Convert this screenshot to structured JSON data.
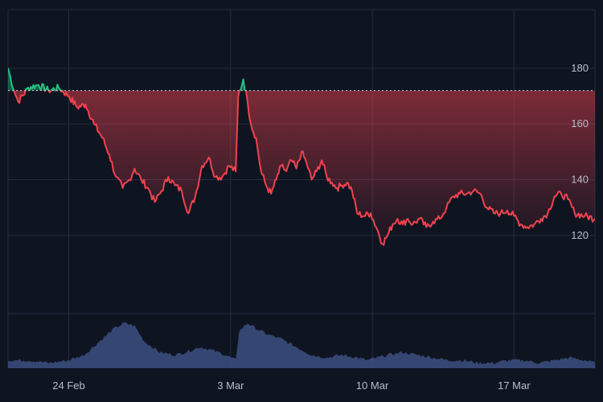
{
  "chart_data": {
    "type": "area",
    "baseline": 172,
    "colors": {
      "above": "#26c281",
      "below": "#f0434f",
      "background": "#0f1421",
      "grid": "#262d3d",
      "volume": "#3d4f80",
      "axis_text": "#b8bfcc"
    },
    "y_axis": {
      "ticks": [
        120,
        140,
        160,
        180
      ],
      "range": [
        92,
        201
      ],
      "position": "right"
    },
    "x_axis": {
      "range": [
        "2024-02-21",
        "2024-03-21"
      ],
      "ticks": [
        {
          "date": "2024-02-24",
          "label": "24 Feb"
        },
        {
          "date": "2024-03-03",
          "label": "3 Mar"
        },
        {
          "date": "2024-03-10",
          "label": "10 Mar"
        },
        {
          "date": "2024-03-17",
          "label": "17 Mar"
        }
      ]
    },
    "grid": true,
    "legend": "none",
    "series": [
      {
        "values": [
          [
            "2024-02-21 00:00",
            180
          ],
          [
            "2024-02-21 07:00",
            172
          ],
          [
            "2024-02-21 12:00",
            168
          ],
          [
            "2024-02-22 00:00",
            173
          ],
          [
            "2024-02-22 12:00",
            174
          ],
          [
            "2024-02-23 00:00",
            172
          ],
          [
            "2024-02-23 12:00",
            173
          ],
          [
            "2024-02-24 00:00",
            170
          ],
          [
            "2024-02-24 10:00",
            166
          ],
          [
            "2024-02-24 20:00",
            167
          ],
          [
            "2024-02-25 06:00",
            160
          ],
          [
            "2024-02-25 16:00",
            155
          ],
          [
            "2024-02-26 00:00",
            149
          ],
          [
            "2024-02-26 08:00",
            141
          ],
          [
            "2024-02-26 16:00",
            137
          ],
          [
            "2024-02-27 00:00",
            140
          ],
          [
            "2024-02-27 06:00",
            144
          ],
          [
            "2024-02-27 14:00",
            140
          ],
          [
            "2024-02-27 22:00",
            137
          ],
          [
            "2024-02-28 06:00",
            132
          ],
          [
            "2024-02-28 14:00",
            136
          ],
          [
            "2024-02-28 22:00",
            141
          ],
          [
            "2024-02-29 06:00",
            138
          ],
          [
            "2024-02-29 14:00",
            136
          ],
          [
            "2024-02-29 22:00",
            128
          ],
          [
            "2024-03-01 06:00",
            134
          ],
          [
            "2024-03-01 14:00",
            145
          ],
          [
            "2024-03-01 22:00",
            148
          ],
          [
            "2024-03-02 06:00",
            141
          ],
          [
            "2024-03-02 14:00",
            141
          ],
          [
            "2024-03-02 22:00",
            145
          ],
          [
            "2024-03-03 06:00",
            143
          ],
          [
            "2024-03-03 09:00",
            170
          ],
          [
            "2024-03-03 15:00",
            176
          ],
          [
            "2024-03-03 20:00",
            168
          ],
          [
            "2024-03-04 00:00",
            160
          ],
          [
            "2024-03-04 06:00",
            155
          ],
          [
            "2024-03-04 12:00",
            143
          ],
          [
            "2024-03-04 18:00",
            138
          ],
          [
            "2024-03-05 00:00",
            135
          ],
          [
            "2024-03-05 06:00",
            140
          ],
          [
            "2024-03-05 12:00",
            145
          ],
          [
            "2024-03-05 18:00",
            143
          ],
          [
            "2024-03-06 00:00",
            147
          ],
          [
            "2024-03-06 06:00",
            144
          ],
          [
            "2024-03-06 12:00",
            150
          ],
          [
            "2024-03-06 18:00",
            146
          ],
          [
            "2024-03-07 00:00",
            140
          ],
          [
            "2024-03-07 06:00",
            143
          ],
          [
            "2024-03-07 12:00",
            147
          ],
          [
            "2024-03-07 18:00",
            141
          ],
          [
            "2024-03-08 00:00",
            139
          ],
          [
            "2024-03-08 06:00",
            137
          ],
          [
            "2024-03-08 12:00",
            138
          ],
          [
            "2024-03-08 18:00",
            139
          ],
          [
            "2024-03-09 00:00",
            136
          ],
          [
            "2024-03-09 06:00",
            128
          ],
          [
            "2024-03-09 14:00",
            127
          ],
          [
            "2024-03-09 22:00",
            128
          ],
          [
            "2024-03-10 06:00",
            122
          ],
          [
            "2024-03-10 12:00",
            117
          ],
          [
            "2024-03-10 18:00",
            120
          ],
          [
            "2024-03-11 00:00",
            124
          ],
          [
            "2024-03-11 06:00",
            126
          ],
          [
            "2024-03-11 12:00",
            124
          ],
          [
            "2024-03-11 18:00",
            126
          ],
          [
            "2024-03-12 00:00",
            124
          ],
          [
            "2024-03-12 08:00",
            126
          ],
          [
            "2024-03-12 16:00",
            123
          ],
          [
            "2024-03-13 00:00",
            125
          ],
          [
            "2024-03-13 08:00",
            126
          ],
          [
            "2024-03-13 16:00",
            130
          ],
          [
            "2024-03-14 00:00",
            134
          ],
          [
            "2024-03-14 08:00",
            135
          ],
          [
            "2024-03-14 16:00",
            135
          ],
          [
            "2024-03-15 00:00",
            136
          ],
          [
            "2024-03-15 08:00",
            135
          ],
          [
            "2024-03-15 16:00",
            130
          ],
          [
            "2024-03-16 00:00",
            128
          ],
          [
            "2024-03-16 08:00",
            128
          ],
          [
            "2024-03-16 16:00",
            129
          ],
          [
            "2024-03-17 00:00",
            127
          ],
          [
            "2024-03-17 08:00",
            124
          ],
          [
            "2024-03-17 16:00",
            123
          ],
          [
            "2024-03-18 00:00",
            124
          ],
          [
            "2024-03-18 08:00",
            126
          ],
          [
            "2024-03-18 16:00",
            128
          ],
          [
            "2024-03-19 00:00",
            134
          ],
          [
            "2024-03-19 08:00",
            135
          ],
          [
            "2024-03-19 16:00",
            133
          ],
          [
            "2024-03-20 00:00",
            128
          ],
          [
            "2024-03-20 12:00",
            127
          ],
          [
            "2024-03-21 00:00",
            126
          ]
        ]
      }
    ],
    "volume": [
      [
        "2024-02-21 00:00",
        3
      ],
      [
        "2024-02-22 00:00",
        3
      ],
      [
        "2024-02-23 00:00",
        2
      ],
      [
        "2024-02-24 00:00",
        3
      ],
      [
        "2024-02-24 18:00",
        5
      ],
      [
        "2024-02-25 12:00",
        10
      ],
      [
        "2024-02-26 06:00",
        15
      ],
      [
        "2024-02-26 18:00",
        17
      ],
      [
        "2024-02-27 06:00",
        16
      ],
      [
        "2024-02-27 18:00",
        10
      ],
      [
        "2024-02-28 12:00",
        6
      ],
      [
        "2024-02-29 06:00",
        5
      ],
      [
        "2024-02-29 18:00",
        6
      ],
      [
        "2024-03-01 12:00",
        8
      ],
      [
        "2024-03-02 00:00",
        7
      ],
      [
        "2024-03-02 18:00",
        5
      ],
      [
        "2024-03-03 06:00",
        3
      ],
      [
        "2024-03-03 10:00",
        14
      ],
      [
        "2024-03-03 20:00",
        17
      ],
      [
        "2024-03-04 06:00",
        15
      ],
      [
        "2024-03-04 18:00",
        13
      ],
      [
        "2024-03-05 12:00",
        11
      ],
      [
        "2024-03-06 06:00",
        8
      ],
      [
        "2024-03-07 00:00",
        5
      ],
      [
        "2024-03-07 18:00",
        4
      ],
      [
        "2024-03-08 12:00",
        5
      ],
      [
        "2024-03-09 06:00",
        4
      ],
      [
        "2024-03-09 18:00",
        3
      ],
      [
        "2024-03-10 06:00",
        4
      ],
      [
        "2024-03-10 18:00",
        5
      ],
      [
        "2024-03-11 12:00",
        6
      ],
      [
        "2024-03-12 06:00",
        5
      ],
      [
        "2024-03-13 00:00",
        4
      ],
      [
        "2024-03-13 18:00",
        3
      ],
      [
        "2024-03-14 12:00",
        3
      ],
      [
        "2024-03-15 06:00",
        2
      ],
      [
        "2024-03-16 00:00",
        2
      ],
      [
        "2024-03-16 18:00",
        3
      ],
      [
        "2024-03-17 12:00",
        3
      ],
      [
        "2024-03-18 06:00",
        2
      ],
      [
        "2024-03-19 00:00",
        3
      ],
      [
        "2024-03-19 18:00",
        4
      ],
      [
        "2024-03-20 12:00",
        3
      ],
      [
        "2024-03-21 00:00",
        2
      ]
    ]
  }
}
